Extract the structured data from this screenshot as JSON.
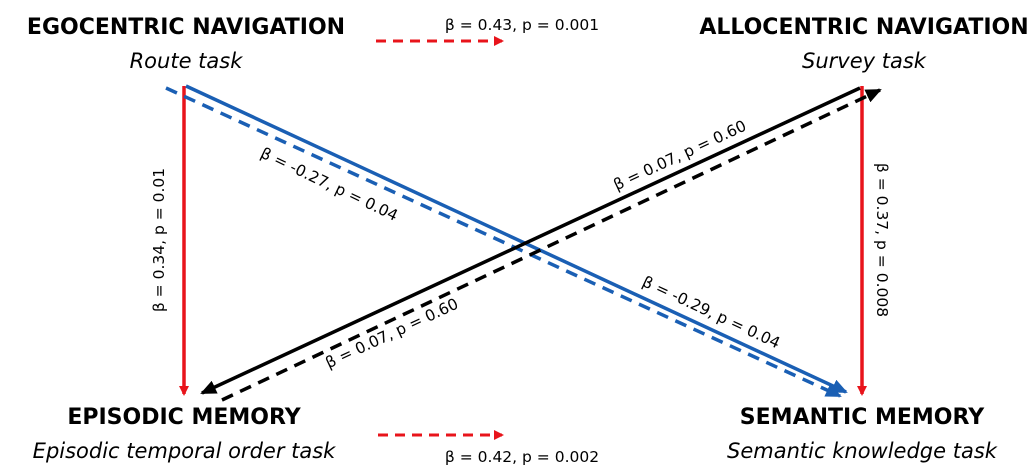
{
  "nodes": {
    "egocentric": {
      "title": "EGOCENTRIC NAVIGATION",
      "subtitle": "Route task"
    },
    "allocentric": {
      "title": "ALLOCENTRIC NAVIGATION",
      "subtitle": "Survey task"
    },
    "episodic": {
      "title": "EPISODIC MEMORY",
      "subtitle": "Episodic temporal order task"
    },
    "semantic": {
      "title": "SEMANTIC MEMORY",
      "subtitle": "Semantic knowledge task"
    }
  },
  "edges": {
    "ego_to_allo": {
      "label": "β = 0.43, p = 0.001",
      "color": "#e8141b",
      "style": "dashed"
    },
    "epi_to_sem": {
      "label": "β = 0.42, p = 0.002",
      "color": "#e8141b",
      "style": "dashed"
    },
    "ego_to_epi": {
      "label": "β = 0.34, p = 0.01",
      "color": "#e8141b",
      "style": "solid"
    },
    "allo_to_sem": {
      "label": "β = 0.37, p = 0.008",
      "color": "#e8141b",
      "style": "solid"
    },
    "ego_to_sem_solid": {
      "label": "β = -0.29, p = 0.04",
      "color": "#1a5fb4",
      "style": "solid"
    },
    "ego_to_sem_dashed": {
      "label": "β = -0.27, p = 0.04",
      "color": "#1a5fb4",
      "style": "dashed"
    },
    "allo_to_epi_solid": {
      "label": "β = 0.07, p = 0.60",
      "color": "#000000",
      "style": "solid"
    },
    "epi_to_allo_dashed": {
      "label": "β = 0.07, p = 0.60",
      "color": "#000000",
      "style": "dashed"
    }
  }
}
